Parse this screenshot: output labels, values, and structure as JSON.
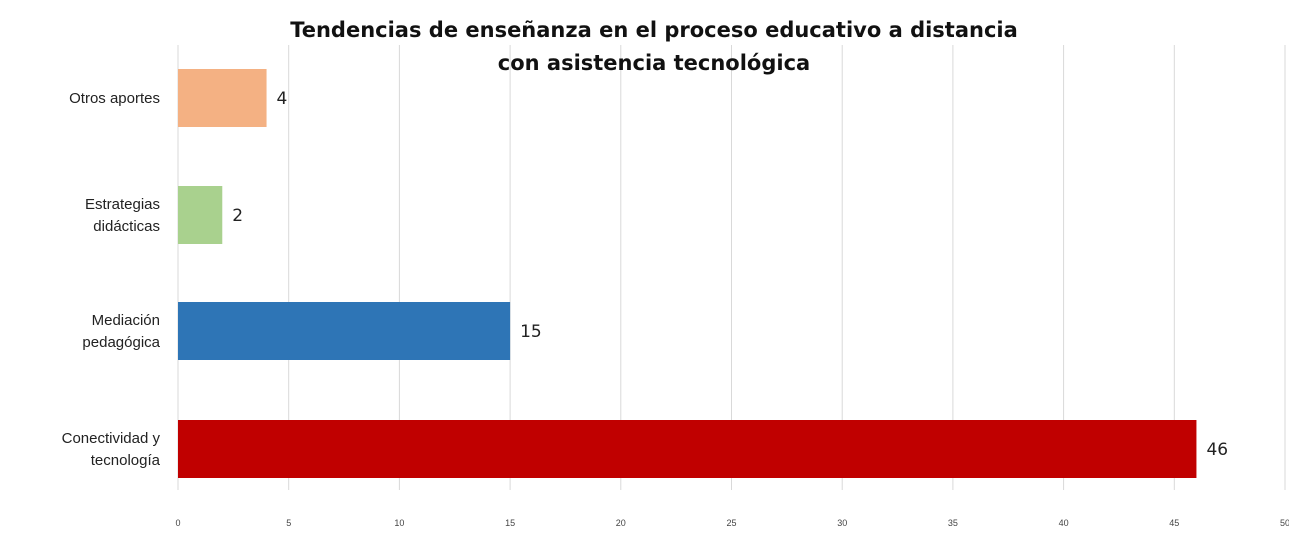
{
  "chart_data": {
    "type": "bar",
    "orientation": "horizontal",
    "title_lines": [
      "Tendencias de enseñanza en el  proceso educativo a distancia",
      "con asistencia tecnológica"
    ],
    "categories": [
      [
        "Otros aportes"
      ],
      [
        "Estrategias",
        "didácticas"
      ],
      [
        "Mediación",
        "pedagógica"
      ],
      [
        "Conectividad y",
        "tecnología"
      ]
    ],
    "values": [
      4,
      2,
      15,
      46
    ],
    "value_labels": [
      "4",
      "2",
      "15",
      "46"
    ],
    "colors": [
      "#f4b183",
      "#a9d18e",
      "#2e75b6",
      "#c00000"
    ],
    "xlim": [
      0,
      50
    ],
    "x_ticks": [
      "0",
      "5",
      "10",
      "15",
      "20",
      "25",
      "30",
      "35",
      "40",
      "45",
      "50"
    ],
    "grid": true,
    "legend": "none"
  }
}
